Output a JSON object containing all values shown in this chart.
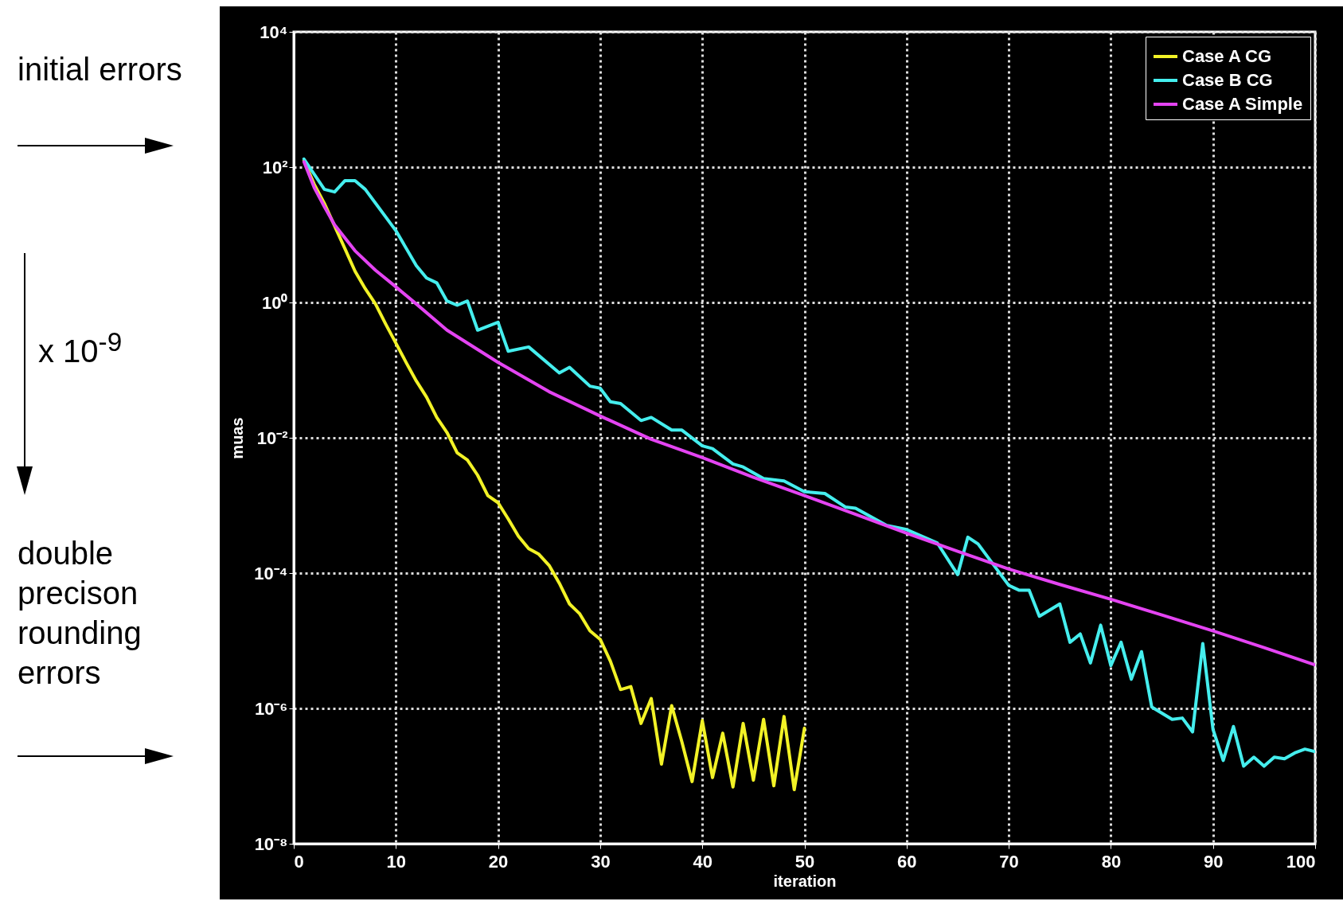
{
  "chart_data": {
    "type": "line",
    "xlabel": "iteration",
    "ylabel": "muas",
    "log": true,
    "grid": true,
    "legend": "top right",
    "xlim": [
      0,
      100
    ],
    "xticks": [
      0,
      10,
      20,
      30,
      40,
      50,
      60,
      70,
      80,
      90,
      100
    ],
    "ylim": [
      1e-08,
      10000
    ],
    "yticks": [
      {
        "value": 1e-08,
        "label": "10⁻⁸"
      },
      {
        "value": 1e-06,
        "label": "10⁻⁶"
      },
      {
        "value": 0.0001,
        "label": "10⁻⁴"
      },
      {
        "value": 0.01,
        "label": "10⁻²"
      },
      {
        "value": 1,
        "label": "10⁰"
      },
      {
        "value": 100,
        "label": "10²"
      },
      {
        "value": 10000,
        "label": "10⁴"
      }
    ],
    "annotations": [
      "initial errors",
      "x 10$^{-9}$",
      "double precison rounding errors"
    ],
    "series": [
      {
        "name": "Case A CG",
        "color": "#f2f226",
        "x": [
          1,
          2,
          3,
          4,
          5,
          6,
          7,
          8,
          9,
          10,
          11,
          12,
          13,
          14,
          15,
          16,
          17,
          18,
          19,
          20,
          21,
          22,
          23,
          24,
          25,
          26,
          27,
          28,
          29,
          30,
          31,
          32,
          33,
          34,
          35,
          36,
          37,
          38,
          39,
          40,
          41,
          42,
          43,
          44,
          45,
          46,
          47,
          48,
          49,
          50
        ],
        "values": [
          126,
          56,
          29,
          13.5,
          6.3,
          2.9,
          1.6,
          0.95,
          0.48,
          0.25,
          0.13,
          0.069,
          0.04,
          0.02,
          0.012,
          0.006,
          0.0047,
          0.0028,
          0.0014,
          0.0011,
          0.00063,
          0.00035,
          0.00023,
          0.00019,
          0.00013,
          7.1e-05,
          3.5e-05,
          2.5e-05,
          1.4e-05,
          1.05e-05,
          5e-06,
          1.9e-06,
          2.1e-06,
          6e-07,
          1.4e-06,
          1.5e-07,
          1.1e-06,
          3.2e-07,
          8.3e-08,
          6.6e-07,
          9.5e-08,
          4.3e-07,
          6.9e-08,
          6e-07,
          8.7e-08,
          6.9e-07,
          7.2e-08,
          7.6e-07,
          6.3e-08,
          5.1e-07
        ]
      },
      {
        "name": "Case B CG",
        "color": "#45eeee",
        "x": [
          1,
          3,
          4,
          5,
          6,
          7,
          10,
          12,
          13,
          14,
          15,
          16,
          17,
          18,
          20,
          21,
          23,
          26,
          27,
          29,
          30,
          31,
          32,
          34,
          35,
          37,
          38,
          40,
          41,
          43,
          44,
          46,
          48,
          50,
          52,
          54,
          55,
          58,
          60,
          63,
          65,
          66,
          67,
          70,
          71,
          72,
          73,
          75,
          76,
          77,
          78,
          79,
          80,
          81,
          82,
          83,
          84,
          86,
          87,
          88,
          89,
          90,
          91,
          92,
          93,
          94,
          95,
          96,
          97,
          98,
          99,
          100
        ],
        "values": [
          132,
          47,
          43,
          63,
          63,
          47,
          11.5,
          3.5,
          2.3,
          1.95,
          1.05,
          0.91,
          1.05,
          0.39,
          0.51,
          0.19,
          0.22,
          0.091,
          0.11,
          0.058,
          0.054,
          0.034,
          0.032,
          0.018,
          0.02,
          0.013,
          0.013,
          0.0076,
          0.0069,
          0.0041,
          0.0037,
          0.0025,
          0.0023,
          0.0016,
          0.0015,
          0.00095,
          0.00091,
          0.00051,
          0.00044,
          0.00028,
          9.5e-05,
          0.00034,
          0.00027,
          6.6e-05,
          5.6e-05,
          5.6e-05,
          2.3e-05,
          3.5e-05,
          9.5e-06,
          1.26e-05,
          4.7e-06,
          1.7e-05,
          4.3e-06,
          9.5e-06,
          2.7e-06,
          6.9e-06,
          1.05e-06,
          6.9e-07,
          7.2e-07,
          4.5e-07,
          9.1e-06,
          4.9e-07,
          1.7e-07,
          5.4e-07,
          1.4e-07,
          1.9e-07,
          1.4e-07,
          1.9e-07,
          1.8e-07,
          2.2e-07,
          2.5e-07,
          2.3e-07
        ]
      },
      {
        "name": "Case A Simple",
        "color": "#e444f2",
        "x": [
          1,
          2,
          3,
          4,
          6,
          8,
          10,
          12,
          15,
          20,
          25,
          30,
          35,
          40,
          45,
          50,
          55,
          60,
          65,
          70,
          75,
          80,
          85,
          90,
          95,
          100
        ],
        "values": [
          120,
          50,
          26,
          14,
          5.8,
          3.0,
          1.7,
          0.95,
          0.39,
          0.13,
          0.048,
          0.021,
          0.0095,
          0.0051,
          0.0026,
          0.0014,
          0.00074,
          0.00039,
          0.00021,
          0.000115,
          6.8e-05,
          4.1e-05,
          2.4e-05,
          1.4e-05,
          7.9e-06,
          4.4e-06
        ]
      }
    ]
  }
}
